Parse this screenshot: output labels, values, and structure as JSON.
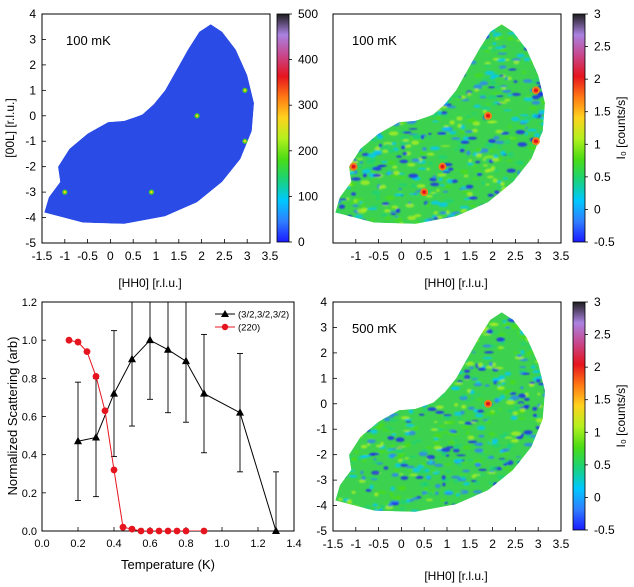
{
  "colors": {
    "colormap": [
      "#1a1aff",
      "#2f7fff",
      "#00c8ff",
      "#19d27a",
      "#4bdc14",
      "#b4f01e",
      "#ffd21e",
      "#ff7814",
      "#e6141e",
      "#c8468c",
      "#aa82e1",
      "#1e1e1e"
    ],
    "series_black": "#000000",
    "series_red": "#e6141e",
    "map_blue": "#2a4be6",
    "map_green": "#3cd250"
  },
  "panels": {
    "top_left": {
      "label": "100 mK",
      "xlabel": "[HH0] [r.l.u.]",
      "ylabel": "[00L] [r.l.u.]",
      "xticks": [
        "-1.5",
        "-1",
        "-0.5",
        "0",
        "0.5",
        "1",
        "1.5",
        "2",
        "2.5",
        "3",
        "3.5"
      ],
      "yticks": [
        "4",
        "3",
        "2",
        "1",
        "0",
        "-1",
        "-2",
        "-3",
        "-4",
        "-5"
      ],
      "cbar_ticks": [
        "500",
        "400",
        "300",
        "200",
        "100",
        "0"
      ]
    },
    "top_right": {
      "label": "100 mK",
      "xlabel": "[HH0] [r.l.u.]",
      "xticks": [
        "-1",
        "-0.5",
        "0",
        "0.5",
        "1",
        "1.5",
        "2",
        "2.5",
        "3",
        "3.5"
      ],
      "cbar_ticks": [
        "3",
        "2.5",
        "2",
        "1.5",
        "1",
        "0.5",
        "0",
        "-0.5"
      ],
      "cbar_label": "I₀ [counts/s]"
    },
    "bottom_right": {
      "label": "500 mK",
      "xlabel": "[HH0] [r.l.u.]",
      "xticks": [
        "-1.5",
        "-1",
        "-0.5",
        "0",
        "0.5",
        "1",
        "1.5",
        "2",
        "2.5",
        "3",
        "3.5"
      ],
      "yticks": [
        "4",
        "3",
        "2",
        "1",
        "0",
        "-1",
        "-2",
        "-3",
        "-4",
        "-5"
      ],
      "cbar_ticks": [
        "3",
        "2.5",
        "2",
        "1.5",
        "1",
        "0.5",
        "0",
        "-0.5"
      ],
      "cbar_label": "I₀ [counts/s]"
    }
  },
  "chart_data": [
    {
      "type": "heatmap",
      "panel": "top_left",
      "label": "100 mK",
      "xlabel": "[HH0] [r.l.u.]",
      "ylabel": "[00L] [r.l.u.]",
      "xlim": [
        -1.5,
        3.5
      ],
      "ylim": [
        -5,
        4
      ],
      "colorbar_range": [
        0,
        500
      ],
      "peaks": [
        {
          "h": 1.9,
          "l": 0.0
        },
        {
          "h": 2.95,
          "l": 1.0
        },
        {
          "h": 2.95,
          "l": -1.0
        },
        {
          "h": -1.0,
          "l": -3.0
        },
        {
          "h": 0.9,
          "l": -3.0
        }
      ]
    },
    {
      "type": "heatmap",
      "panel": "top_right",
      "label": "100 mK",
      "xlabel": "[HH0] [r.l.u.]",
      "xlim": [
        -1.5,
        3.5
      ],
      "ylim": [
        -5,
        4
      ],
      "colorbar_range": [
        -0.5,
        3
      ],
      "colorbar_label": "I₀ [counts/s]",
      "peaks": [
        {
          "h": 1.9,
          "l": 0.0
        },
        {
          "h": 2.95,
          "l": 1.0
        },
        {
          "h": 2.95,
          "l": -1.0
        },
        {
          "h": -1.05,
          "l": -2.0
        },
        {
          "h": 0.9,
          "l": -2.0
        },
        {
          "h": 0.5,
          "l": -3.0
        }
      ]
    },
    {
      "type": "line",
      "panel": "bottom_left",
      "xlabel": "Temperature (K)",
      "ylabel": "Normalized Scattering (arb)",
      "xlim": [
        0.0,
        1.4
      ],
      "ylim": [
        0.0,
        1.2
      ],
      "xticks": [
        "0.0",
        "0.2",
        "0.4",
        "0.6",
        "0.8",
        "1.0",
        "1.2",
        "1.4"
      ],
      "yticks": [
        "0.0",
        "0.2",
        "0.4",
        "0.6",
        "0.8",
        "1.0",
        "1.2"
      ],
      "legend": "top-right",
      "series": [
        {
          "name": "(3/2,3/2,3/2)",
          "marker": "triangle",
          "color": "#000000",
          "x": [
            0.2,
            0.3,
            0.4,
            0.5,
            0.6,
            0.7,
            0.8,
            0.9,
            1.1,
            1.3
          ],
          "y": [
            0.47,
            0.49,
            0.72,
            0.9,
            1.0,
            0.95,
            0.89,
            0.72,
            0.62,
            0.0
          ],
          "error": [
            0.31,
            0.31,
            0.33,
            0.35,
            0.31,
            0.33,
            0.32,
            0.31,
            0.31,
            0.31
          ]
        },
        {
          "name": "(220)",
          "marker": "circle",
          "color": "#e6141e",
          "x": [
            0.15,
            0.2,
            0.25,
            0.3,
            0.35,
            0.4,
            0.45,
            0.5,
            0.55,
            0.6,
            0.65,
            0.7,
            0.75,
            0.8,
            0.9
          ],
          "y": [
            1.0,
            0.99,
            0.94,
            0.81,
            0.63,
            0.32,
            0.02,
            0.01,
            0.0,
            0.0,
            0.0,
            0.0,
            0.0,
            0.0,
            0.0
          ]
        }
      ]
    },
    {
      "type": "heatmap",
      "panel": "bottom_right",
      "label": "500 mK",
      "xlabel": "[HH0] [r.l.u.]",
      "xlim": [
        -1.5,
        3.5
      ],
      "ylim": [
        -5,
        4
      ],
      "colorbar_range": [
        -0.5,
        3
      ],
      "colorbar_label": "I₀ [counts/s]",
      "peaks": [
        {
          "h": 1.9,
          "l": 0.0
        }
      ]
    }
  ]
}
